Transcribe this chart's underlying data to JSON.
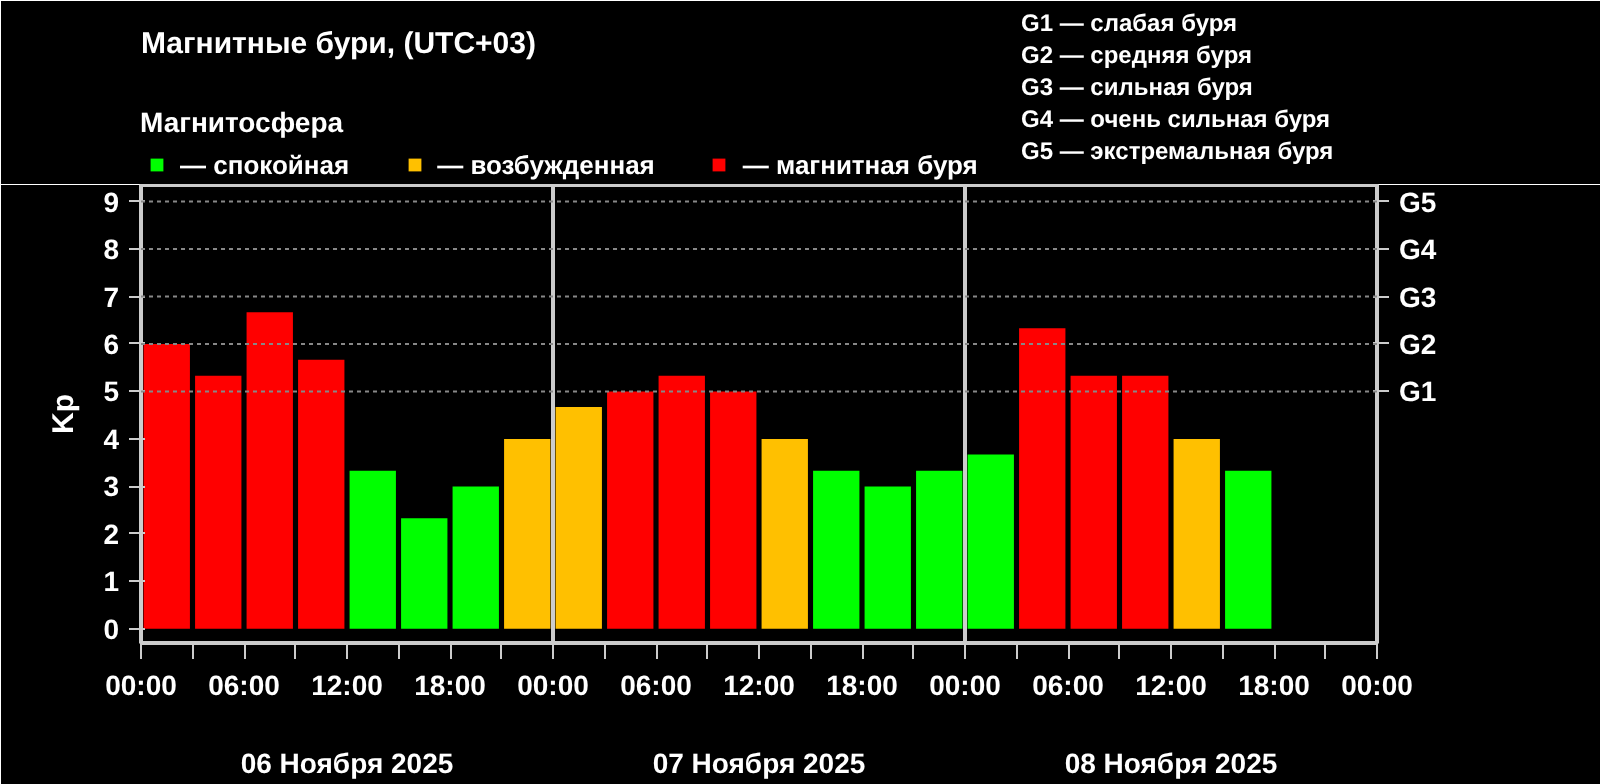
{
  "chart_data": {
    "type": "bar",
    "title": "Магнитные бури, (UTC+03)",
    "ylabel": "Kp",
    "legend_title": "Магнитосфера",
    "legend": "top",
    "x": [
      "2025-11-06T01:30",
      "2025-11-06T04:30",
      "2025-11-06T07:30",
      "2025-11-06T10:30",
      "2025-11-06T13:30",
      "2025-11-06T16:30",
      "2025-11-06T19:30",
      "2025-11-06T22:30",
      "2025-11-07T01:30",
      "2025-11-07T04:30",
      "2025-11-07T07:30",
      "2025-11-07T10:30",
      "2025-11-07T13:30",
      "2025-11-07T16:30",
      "2025-11-07T19:30",
      "2025-11-07T22:30",
      "2025-11-08T01:30",
      "2025-11-08T04:30",
      "2025-11-08T07:30",
      "2025-11-08T10:30",
      "2025-11-08T13:30",
      "2025-11-08T16:30"
    ],
    "series": [
      {
        "name": "— спокойная",
        "color": "#00ff00",
        "values": [
          null,
          null,
          null,
          null,
          3.33,
          2.33,
          3,
          null,
          null,
          null,
          null,
          null,
          null,
          3.33,
          3,
          3.33,
          3.67,
          null,
          null,
          null,
          null,
          3.33
        ]
      },
      {
        "name": "— возбужденная",
        "color": "#ffc000",
        "values": [
          null,
          null,
          null,
          null,
          null,
          null,
          null,
          4,
          4.67,
          null,
          null,
          null,
          4,
          null,
          null,
          null,
          null,
          null,
          null,
          null,
          4,
          null
        ]
      },
      {
        "name": "— магнитная буря",
        "color": "#ff0000",
        "values": [
          6,
          5.33,
          6.67,
          5.67,
          null,
          null,
          null,
          null,
          null,
          5,
          5.33,
          5,
          null,
          null,
          null,
          null,
          null,
          6.33,
          5.33,
          5.33,
          null,
          null
        ]
      }
    ],
    "xlim": [
      "2025-11-06T00:00",
      "2025-11-09T00:00"
    ],
    "xticks": [
      {
        "value": "2025-11-06T00:00",
        "label": "00:00"
      },
      {
        "value": "2025-11-06T03:00",
        "label": null
      },
      {
        "value": "2025-11-06T06:00",
        "label": "06:00"
      },
      {
        "value": "2025-11-06T09:00",
        "label": null
      },
      {
        "value": "2025-11-06T12:00",
        "label": "12:00"
      },
      {
        "value": "2025-11-06T15:00",
        "label": null
      },
      {
        "value": "2025-11-06T18:00",
        "label": "18:00"
      },
      {
        "value": "2025-11-06T21:00",
        "label": null
      },
      {
        "value": "2025-11-07T00:00",
        "label": "00:00"
      },
      {
        "value": "2025-11-07T03:00",
        "label": null
      },
      {
        "value": "2025-11-07T06:00",
        "label": "06:00"
      },
      {
        "value": "2025-11-07T09:00",
        "label": null
      },
      {
        "value": "2025-11-07T12:00",
        "label": "12:00"
      },
      {
        "value": "2025-11-07T15:00",
        "label": null
      },
      {
        "value": "2025-11-07T18:00",
        "label": "18:00"
      },
      {
        "value": "2025-11-07T21:00",
        "label": null
      },
      {
        "value": "2025-11-08T00:00",
        "label": "00:00"
      },
      {
        "value": "2025-11-08T03:00",
        "label": null
      },
      {
        "value": "2025-11-08T06:00",
        "label": "06:00"
      },
      {
        "value": "2025-11-08T09:00",
        "label": null
      },
      {
        "value": "2025-11-08T12:00",
        "label": "12:00"
      },
      {
        "value": "2025-11-08T15:00",
        "label": null
      },
      {
        "value": "2025-11-08T18:00",
        "label": "18:00"
      },
      {
        "value": "2025-11-08T21:00",
        "label": null
      },
      {
        "value": "2025-11-09T00:00",
        "label": "00:00"
      }
    ],
    "ylim": [
      -0.3,
      9.35
    ],
    "yticks": [
      0,
      1,
      2,
      3,
      4,
      5,
      6,
      7,
      8,
      9
    ],
    "ref_lines": [
      {
        "axis": "x",
        "value": "2025-11-07T00:00",
        "color": "#cccccc"
      },
      {
        "axis": "x",
        "value": "2025-11-08T00:00",
        "color": "#cccccc"
      },
      {
        "axis": "y",
        "value": 5,
        "label": "G1",
        "color": "#888888",
        "line_style": "dotted"
      },
      {
        "axis": "y",
        "value": 6,
        "label": "G2",
        "color": "#888888",
        "line_style": "dotted"
      },
      {
        "axis": "y",
        "value": 7,
        "label": "G3",
        "color": "#888888",
        "line_style": "dotted"
      },
      {
        "axis": "y",
        "value": 8,
        "label": "G4",
        "color": "#888888",
        "line_style": "dotted"
      },
      {
        "axis": "y",
        "value": 9,
        "label": "G5",
        "color": "#888888",
        "line_style": "dotted"
      }
    ],
    "annotations": [
      "06 Ноября 2025",
      "07 Ноября 2025",
      "08 Ноября 2025",
      "G1 — слабая буря",
      "G2 — средняя буря",
      "G3 — сильная буря",
      "G4 — очень сильная буря",
      "G5 — экстремальная буря"
    ]
  }
}
